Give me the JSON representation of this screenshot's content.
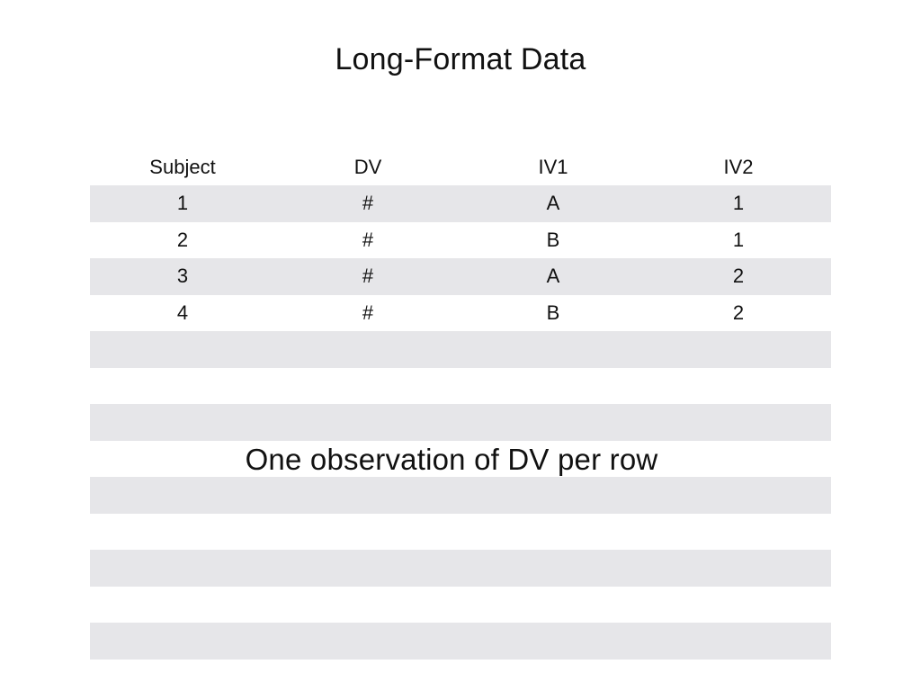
{
  "slide": {
    "title": "Long-Format Data",
    "caption": "One observation of DV per row"
  },
  "table": {
    "columns": [
      "Subject",
      "DV",
      "IV1",
      "IV2"
    ],
    "rows": [
      [
        "1",
        "#",
        "A",
        "1"
      ],
      [
        "2",
        "#",
        "B",
        "1"
      ],
      [
        "3",
        "#",
        "A",
        "2"
      ],
      [
        "4",
        "#",
        "B",
        "2"
      ]
    ]
  },
  "colors": {
    "stripe": "#e6e6e9",
    "background": "#ffffff",
    "text": "#111111"
  }
}
